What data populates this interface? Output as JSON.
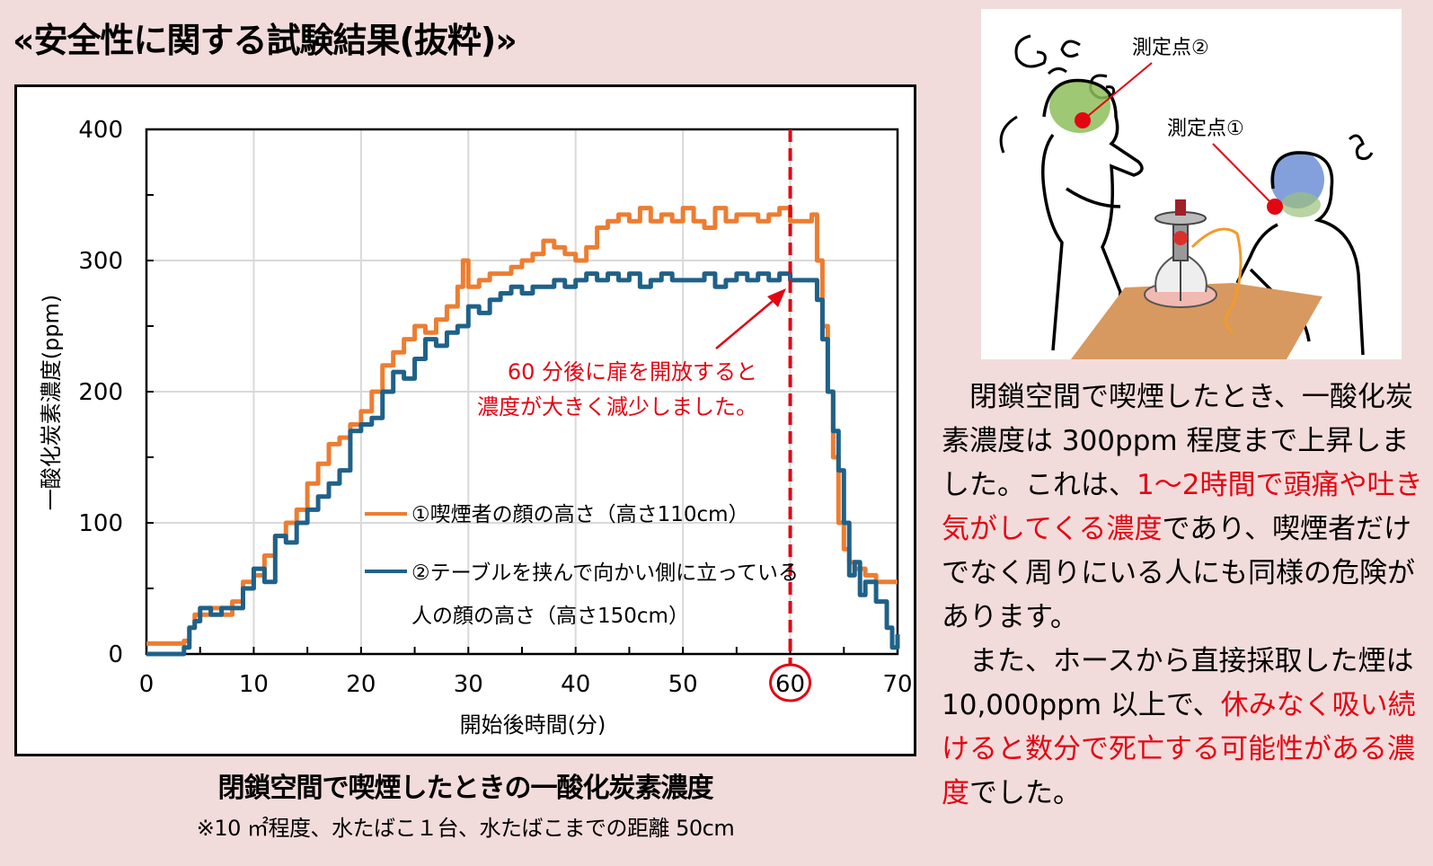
{
  "page": {
    "title": "«安全性に関する試験結果(抜粋)»",
    "background_color": "#F2DCDB"
  },
  "chart_data": {
    "type": "line",
    "title": "閉鎖空間で喫煙したときの一酸化炭素濃度",
    "subtitle": "※10 ㎡程度、水たばこ１台、水たばこまでの距離 50cm",
    "xlabel": "開始後時間(分)",
    "ylabel": "一酸化炭素濃度(ppm)",
    "xlim": [
      0,
      70
    ],
    "ylim": [
      0,
      400
    ],
    "xticks": [
      0,
      10,
      20,
      30,
      40,
      50,
      60,
      70
    ],
    "yticks": [
      0,
      100,
      200,
      300,
      400
    ],
    "grid": true,
    "legend_position": "inside-lower-center",
    "highlighted_xtick": 60,
    "vline": {
      "x": 60,
      "style": "dashed",
      "color": "#E30613"
    },
    "annotation": {
      "lines": [
        "60 分後に扉を開放すると",
        "濃度が大きく減少しました。"
      ],
      "color": "#E30613",
      "arrow_to": [
        60,
        285
      ]
    },
    "series": [
      {
        "name": "①喫煙者の顔の高さ（高さ110cm）",
        "color": "#ED7D31",
        "x": [
          0,
          3,
          3.5,
          4,
          4.5,
          5,
          6,
          7,
          8,
          9,
          10,
          11,
          12,
          13,
          14,
          15,
          16,
          17,
          18,
          19,
          20,
          21,
          22,
          23,
          24,
          25,
          26,
          27,
          28,
          29,
          29.5,
          30,
          31,
          32,
          33,
          34,
          35,
          36,
          37,
          38,
          39,
          40,
          41,
          42,
          43,
          44,
          45,
          46,
          47,
          48,
          49,
          50,
          51,
          52,
          53,
          54,
          55,
          56,
          57,
          58,
          59,
          60,
          61,
          62,
          62.5,
          63,
          63.5,
          64,
          64.5,
          65,
          65.5,
          66,
          67,
          68,
          69,
          70
        ],
        "values": [
          8,
          8,
          10,
          20,
          30,
          30,
          35,
          30,
          40,
          55,
          60,
          75,
          90,
          100,
          110,
          130,
          145,
          160,
          165,
          175,
          185,
          200,
          220,
          230,
          240,
          250,
          245,
          255,
          265,
          280,
          300,
          280,
          285,
          290,
          290,
          295,
          300,
          305,
          315,
          310,
          305,
          300,
          310,
          325,
          330,
          335,
          330,
          340,
          330,
          335,
          330,
          340,
          330,
          325,
          340,
          330,
          335,
          335,
          330,
          335,
          340,
          330,
          330,
          335,
          300,
          250,
          200,
          150,
          100,
          80,
          70,
          65,
          60,
          55,
          55,
          55
        ]
      },
      {
        "name": "②テーブルを挟んで向かい側に立っている人の顔の高さ（高さ150cm）",
        "color": "#1F6189",
        "x": [
          0,
          3,
          3.5,
          4,
          4.5,
          5,
          6,
          7,
          8,
          9,
          10,
          11,
          12,
          13,
          14,
          15,
          16,
          17,
          18,
          19,
          20,
          21,
          22,
          23,
          24,
          25,
          26,
          27,
          28,
          29,
          30,
          31,
          32,
          33,
          34,
          35,
          36,
          37,
          38,
          39,
          40,
          41,
          42,
          43,
          44,
          45,
          46,
          47,
          48,
          49,
          50,
          51,
          52,
          53,
          54,
          55,
          56,
          57,
          58,
          59,
          60,
          61,
          62,
          62.5,
          63,
          63.5,
          64,
          64.5,
          65,
          65.5,
          66,
          66.5,
          67,
          68,
          69,
          69.5,
          70
        ],
        "values": [
          0,
          0,
          5,
          20,
          25,
          35,
          30,
          35,
          35,
          50,
          65,
          55,
          90,
          85,
          100,
          110,
          120,
          130,
          140,
          170,
          175,
          180,
          200,
          215,
          210,
          225,
          240,
          235,
          245,
          250,
          265,
          260,
          270,
          275,
          280,
          275,
          280,
          280,
          285,
          280,
          285,
          290,
          285,
          290,
          285,
          290,
          280,
          285,
          290,
          285,
          285,
          285,
          290,
          280,
          285,
          290,
          285,
          290,
          285,
          290,
          285,
          285,
          285,
          270,
          240,
          200,
          170,
          140,
          100,
          60,
          70,
          45,
          55,
          40,
          20,
          5,
          15
        ]
      }
    ]
  },
  "illustration": {
    "point2_label": "測定点②",
    "point1_label": "測定点①"
  },
  "description": {
    "paragraphs": [
      [
        {
          "text": "閉鎖空間で喫煙したとき、一酸化炭素濃度は 300ppm 程度まで上昇しました。これは、",
          "highlight": false
        },
        {
          "text": "1～2時間で頭痛や吐き気がしてくる濃度",
          "highlight": true
        },
        {
          "text": "であり、喫煙者だけでなく周りにいる人にも同様の危険があります。",
          "highlight": false
        }
      ],
      [
        {
          "text": "また、ホースから直接採取した煙は 10,000ppm 以上で、",
          "highlight": false
        },
        {
          "text": "休みなく吸い続けると数分で死亡する可能性がある濃度",
          "highlight": true
        },
        {
          "text": "でした。",
          "highlight": false
        }
      ]
    ],
    "highlight_color": "#E30613"
  }
}
